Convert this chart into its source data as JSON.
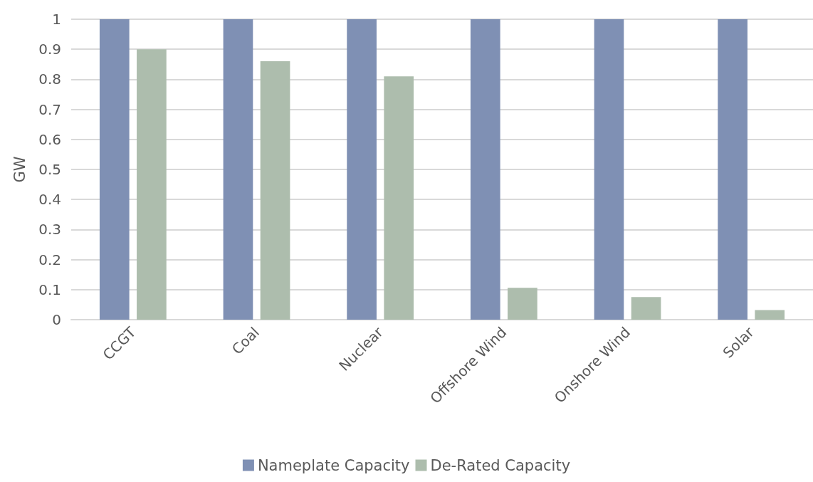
{
  "chart_data": {
    "type": "bar",
    "ylabel": "GW",
    "categories": [
      "CCGT",
      "Coal",
      "Nuclear",
      "Offshore Wind",
      "Onshore Wind",
      "Solar"
    ],
    "series": [
      {
        "name": "Nameplate Capacity",
        "color": "#7f90b4",
        "values": [
          1,
          1,
          1,
          1,
          1,
          1
        ]
      },
      {
        "name": "De-Rated Capacity",
        "color": "#adbdad",
        "values": [
          0.9,
          0.86,
          0.81,
          0.106,
          0.075,
          0.032
        ]
      }
    ],
    "ylim": [
      0,
      1
    ],
    "yticks": [
      0,
      0.1,
      0.2,
      0.3,
      0.4,
      0.5,
      0.6,
      0.7,
      0.8,
      0.9,
      1
    ],
    "grid": "y",
    "legend": "bottom"
  }
}
